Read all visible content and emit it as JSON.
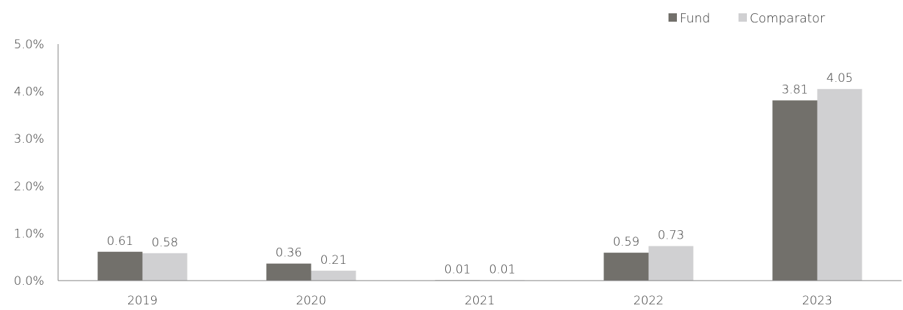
{
  "chart_data": {
    "type": "bar",
    "categories": [
      "2019",
      "2020",
      "2021",
      "2022",
      "2023"
    ],
    "series": [
      {
        "name": "Fund",
        "values": [
          0.61,
          0.36,
          0.01,
          0.59,
          3.81
        ],
        "labels": [
          "0.61",
          "0.36",
          "0.01",
          "0.59",
          "3.81"
        ],
        "color": "#72706b"
      },
      {
        "name": "Comparator",
        "values": [
          0.58,
          0.21,
          0.01,
          0.73,
          4.05
        ],
        "labels": [
          "0.58",
          "0.21",
          "0.01",
          "0.73",
          "4.05"
        ],
        "color": "#d0d0d2"
      }
    ],
    "yticks": [
      "0.0%",
      "1.0%",
      "2.0%",
      "3.0%",
      "4.0%",
      "5.0%"
    ],
    "ylim": [
      0,
      5
    ],
    "legend_position": "top-right",
    "grid": false
  }
}
